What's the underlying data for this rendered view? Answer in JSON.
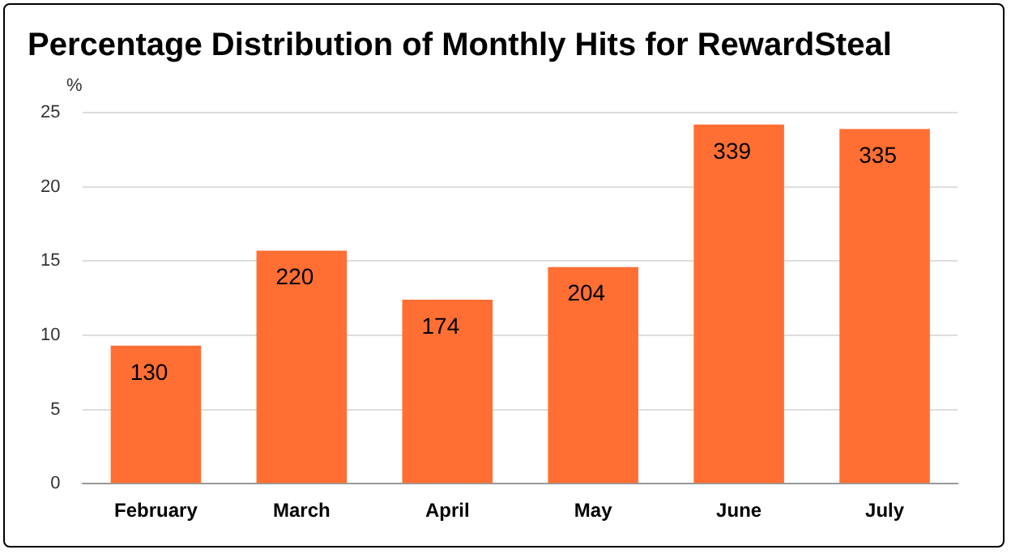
{
  "chart_data": {
    "type": "bar",
    "title": "Percentage Distribution of Monthly Hits for RewardSteal",
    "ylabel": "%",
    "categories": [
      "February",
      "March",
      "April",
      "May",
      "June",
      "July"
    ],
    "values": [
      9.3,
      15.7,
      12.4,
      14.6,
      24.2,
      23.9
    ],
    "annotations": [
      {
        "text": "130",
        "x": "February",
        "y": 9.3
      },
      {
        "text": "220",
        "x": "March",
        "y": 15.7
      },
      {
        "text": "174",
        "x": "April",
        "y": 12.4
      },
      {
        "text": "204",
        "x": "May",
        "y": 14.6
      },
      {
        "text": "339",
        "x": "June",
        "y": 24.2
      },
      {
        "text": "335",
        "x": "July",
        "y": 23.9
      }
    ],
    "color": "#ff6f33",
    "ylim": [
      0,
      25
    ],
    "yticks": [
      0,
      5,
      10,
      15,
      20,
      25
    ],
    "grid": "y",
    "legend": false
  }
}
